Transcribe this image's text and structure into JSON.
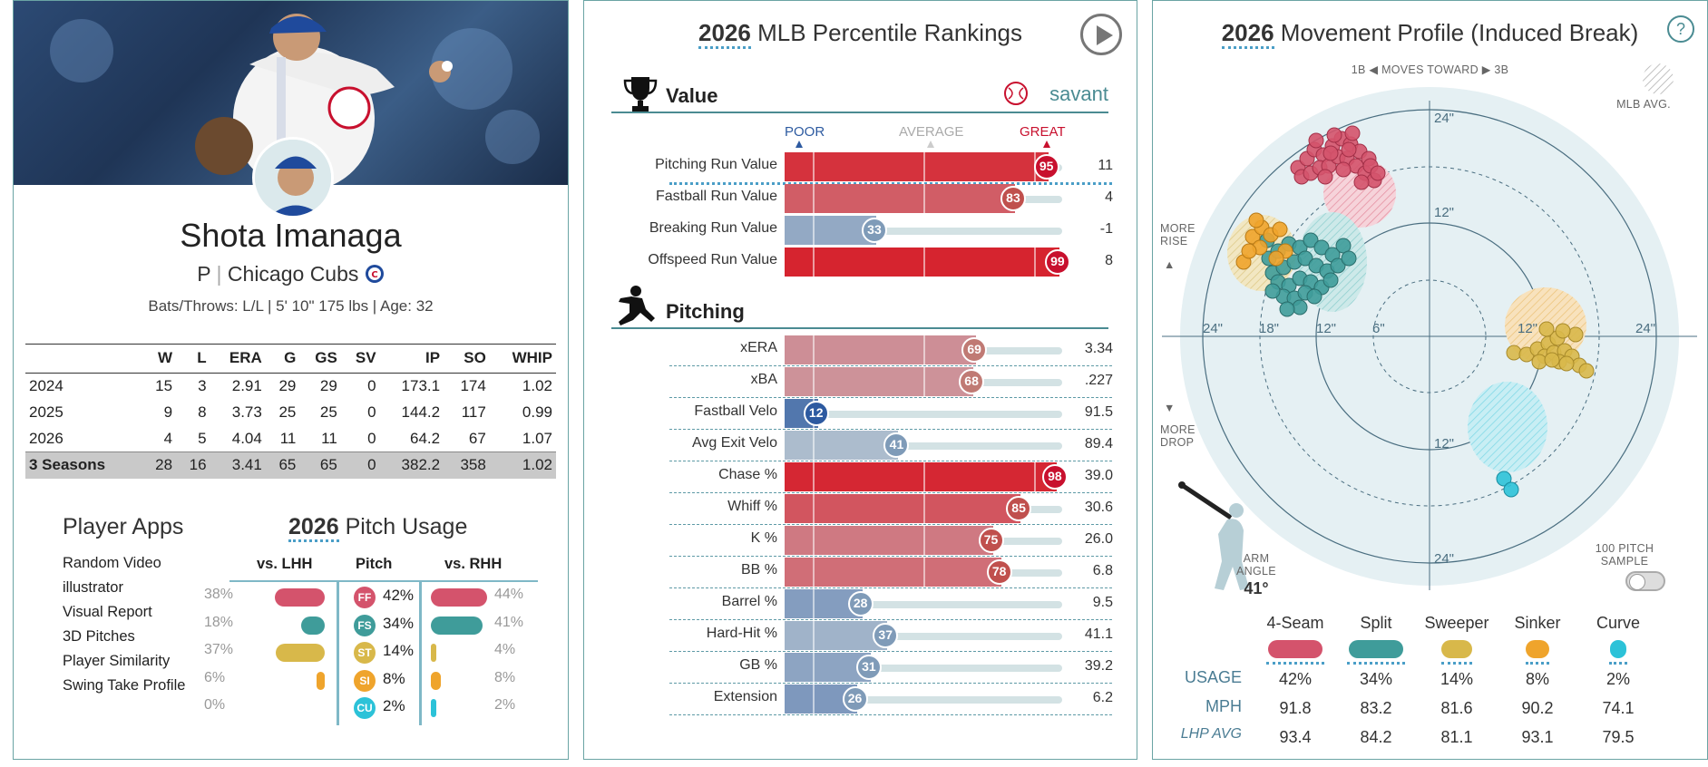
{
  "player": {
    "name": "Shota Imanaga",
    "position": "P",
    "team": "Chicago Cubs",
    "bio": "Bats/Throws: L/L | 5' 10\" 175 lbs | Age: 32",
    "stats_headers": [
      "",
      "W",
      "L",
      "ERA",
      "G",
      "GS",
      "SV",
      "IP",
      "SO",
      "WHIP"
    ],
    "stats_rows": [
      [
        "2024",
        "15",
        "3",
        "2.91",
        "29",
        "29",
        "0",
        "173.1",
        "174",
        "1.02"
      ],
      [
        "2025",
        "9",
        "8",
        "3.73",
        "25",
        "25",
        "0",
        "144.2",
        "117",
        "0.99"
      ],
      [
        "2026",
        "4",
        "5",
        "4.04",
        "11",
        "11",
        "0",
        "64.2",
        "67",
        "1.07"
      ]
    ],
    "stats_total": [
      "3 Seasons",
      "28",
      "16",
      "3.41",
      "65",
      "65",
      "0",
      "382.2",
      "358",
      "1.02"
    ]
  },
  "apps": {
    "title": "Player Apps",
    "items": [
      "Random Video",
      "illustrator",
      "Visual Report",
      "3D Pitches",
      "Player Similarity",
      "Swing Take Profile"
    ]
  },
  "pitch_usage": {
    "year": "2026",
    "title": "Pitch Usage",
    "col_lhh": "vs. LHH",
    "col_pitch": "Pitch",
    "col_rhh": "vs. RHH",
    "rows": [
      {
        "code": "FF",
        "color": "#d4536c",
        "lhh": "38%",
        "lhh_val": 38,
        "all": "42%",
        "rhh": "44%",
        "rhh_val": 44
      },
      {
        "code": "FS",
        "color": "#3f9c9a",
        "lhh": "18%",
        "lhh_val": 18,
        "all": "34%",
        "rhh": "41%",
        "rhh_val": 41
      },
      {
        "code": "ST",
        "color": "#d8b84a",
        "lhh": "37%",
        "lhh_val": 37,
        "all": "14%",
        "rhh": "4%",
        "rhh_val": 4
      },
      {
        "code": "SI",
        "color": "#efa42c",
        "lhh": "6%",
        "lhh_val": 6,
        "all": "8%",
        "rhh": "8%",
        "rhh_val": 8
      },
      {
        "code": "CU",
        "color": "#2cc2d8",
        "lhh": "0%",
        "lhh_val": 0,
        "all": "2%",
        "rhh": "2%",
        "rhh_val": 2
      }
    ]
  },
  "percentiles": {
    "year": "2026",
    "title": "MLB Percentile Rankings",
    "scale": {
      "poor": "POOR",
      "average": "AVERAGE",
      "great": "GREAT"
    },
    "brand": "savant",
    "sections": [
      {
        "name": "Value",
        "rows": [
          {
            "label": "Pitching Run Value",
            "pct": 95,
            "value": "11"
          },
          {
            "label": "Fastball Run Value",
            "pct": 83,
            "value": "4"
          },
          {
            "label": "Breaking Run Value",
            "pct": 33,
            "value": "-1"
          },
          {
            "label": "Offspeed Run Value",
            "pct": 99,
            "value": "8"
          }
        ]
      },
      {
        "name": "Pitching",
        "rows": [
          {
            "label": "xERA",
            "pct": 69,
            "value": "3.34"
          },
          {
            "label": "xBA",
            "pct": 68,
            "value": ".227"
          },
          {
            "label": "Fastball Velo",
            "pct": 12,
            "value": "91.5"
          },
          {
            "label": "Avg Exit Velo",
            "pct": 41,
            "value": "89.4"
          },
          {
            "label": "Chase %",
            "pct": 98,
            "value": "39.0"
          },
          {
            "label": "Whiff %",
            "pct": 85,
            "value": "30.6"
          },
          {
            "label": "K %",
            "pct": 75,
            "value": "26.0"
          },
          {
            "label": "BB %",
            "pct": 78,
            "value": "6.8"
          },
          {
            "label": "Barrel %",
            "pct": 28,
            "value": "9.5"
          },
          {
            "label": "Hard-Hit %",
            "pct": 37,
            "value": "41.1"
          },
          {
            "label": "GB %",
            "pct": 31,
            "value": "39.2"
          },
          {
            "label": "Extension",
            "pct": 26,
            "value": "6.2"
          }
        ]
      }
    ]
  },
  "movement": {
    "year": "2026",
    "title": "Movement Profile (Induced Break)",
    "top_note_left": "1B",
    "top_note_mid": "MOVES TOWARD",
    "top_note_right": "3B",
    "mlb_avg": "MLB AVG.",
    "more_rise": "MORE RISE",
    "more_drop": "MORE DROP",
    "arm_angle_label": "ARM ANGLE",
    "arm_angle_value": "41°",
    "sample_label": "100 PITCH SAMPLE",
    "ring_labels": [
      "24\"",
      "18\"",
      "12\"",
      "6\"",
      "12\"",
      "24\"",
      "24\"",
      "12\"",
      "12\"",
      "24\""
    ],
    "row_labels": {
      "usage": "USAGE",
      "mph": "MPH",
      "lhp": "LHP AVG"
    },
    "pitches": [
      {
        "name": "4-Seam",
        "color": "#d4536c",
        "usage": "42%",
        "mph": "91.8",
        "lhp_avg": "93.4"
      },
      {
        "name": "Split",
        "color": "#3f9c9a",
        "usage": "34%",
        "mph": "83.2",
        "lhp_avg": "84.2"
      },
      {
        "name": "Sweeper",
        "color": "#d8b84a",
        "usage": "14%",
        "mph": "81.6",
        "lhp_avg": "81.1"
      },
      {
        "name": "Sinker",
        "color": "#efa42c",
        "usage": "8%",
        "mph": "90.2",
        "lhp_avg": "93.1"
      },
      {
        "name": "Curve",
        "color": "#2cc2d8",
        "usage": "2%",
        "mph": "74.1",
        "lhp_avg": "79.5"
      }
    ]
  }
}
